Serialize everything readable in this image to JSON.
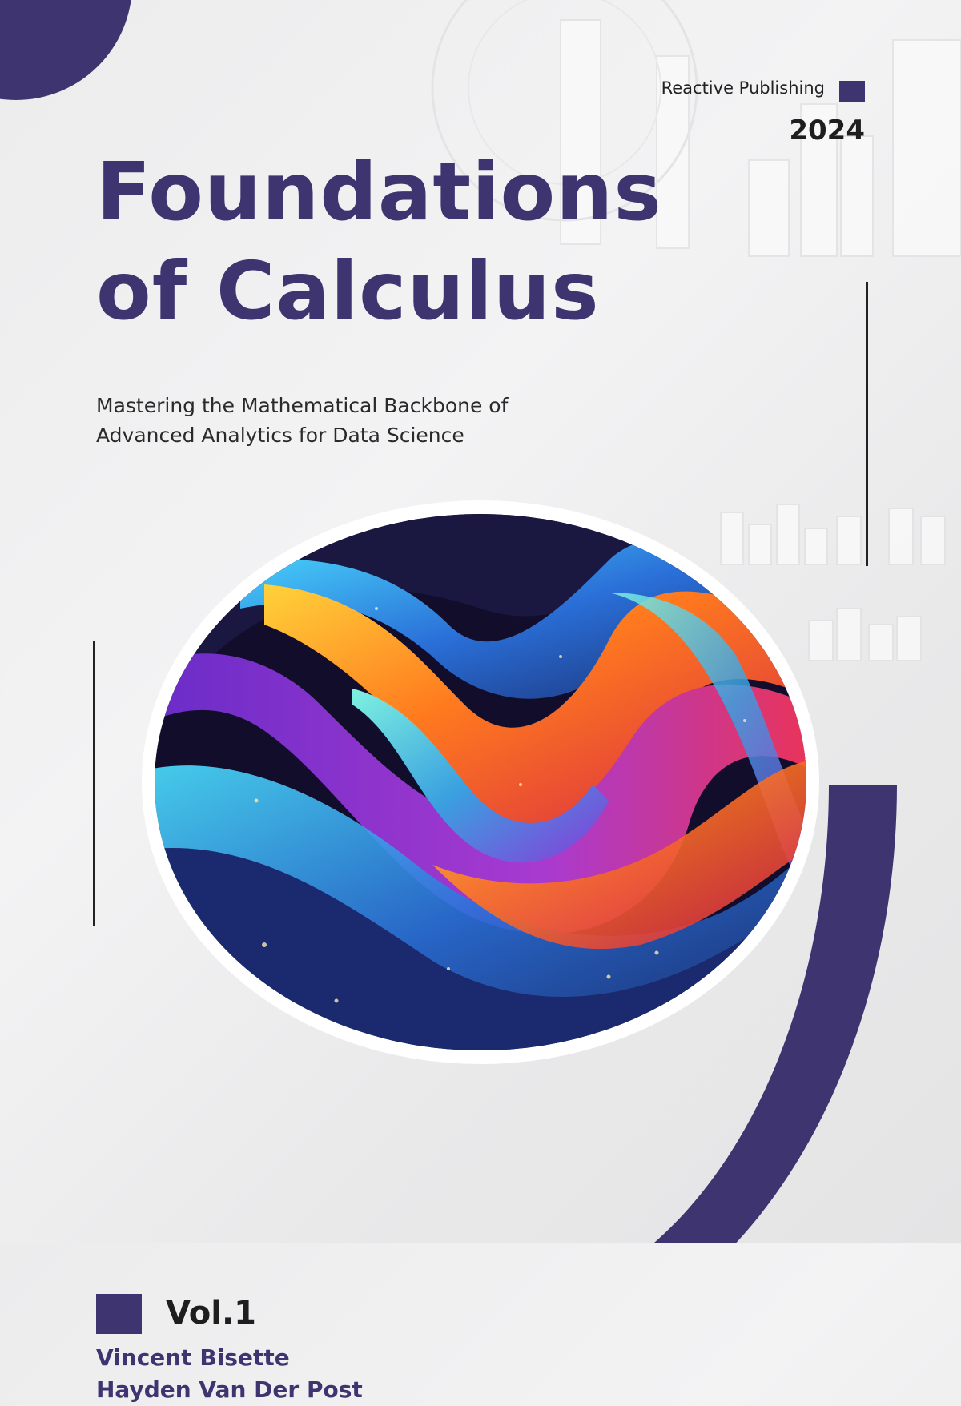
{
  "publisher": "Reactive Publishing",
  "year": "2024",
  "title": {
    "line1": "Foundations",
    "line2": "of Calculus"
  },
  "subtitle": {
    "line1": "Mastering the Mathematical Backbone of",
    "line2": "Advanced Analytics for Data Science"
  },
  "volume": "Vol.1",
  "authors": [
    "Vincent Bisette",
    "Hayden Van Der Post"
  ],
  "colors": {
    "brand_purple": "#3d3470",
    "text_dark": "#1e1e1e",
    "background": "#efeff0"
  },
  "artwork": "abstract-colorful-wave-image"
}
